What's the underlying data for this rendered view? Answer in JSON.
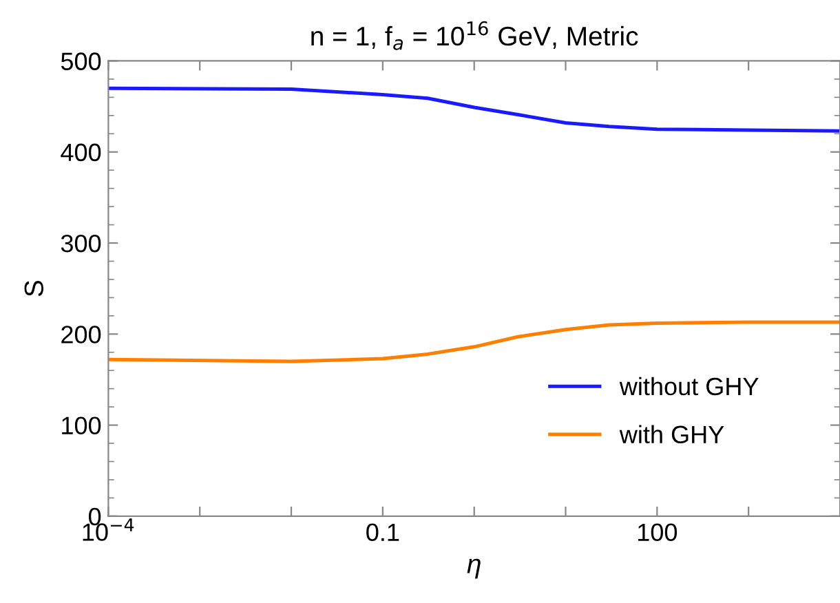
{
  "chart_data": {
    "type": "line",
    "title": "n = 1, f$_{a}$ = 10$^{16}$ GeV, Metric",
    "xlabel": "η",
    "ylabel": "S",
    "log": "x",
    "xlim": [
      0.0001,
      10000
    ],
    "ylim": [
      0,
      500
    ],
    "xticks": [
      {
        "value": 0.0001,
        "label": "10$^{−4}$"
      },
      {
        "value": 0.001,
        "label": null
      },
      {
        "value": 0.01,
        "label": null
      },
      0.1,
      {
        "value": 1,
        "label": null
      },
      {
        "value": 10,
        "label": null
      },
      100,
      {
        "value": 1000,
        "label": null
      }
    ],
    "yticks": [
      0,
      100,
      200,
      300,
      400,
      500
    ],
    "grid": false,
    "legend": "bottom right",
    "marker": "none",
    "line_style": "solid",
    "series": [
      {
        "name": "without GHY",
        "color": "#1a1aff",
        "x": [
          0.0001,
          0.01,
          0.1,
          0.31,
          1,
          3,
          10,
          30,
          100,
          1000,
          10000
        ],
        "values": [
          470,
          469,
          463,
          459,
          449,
          441,
          432,
          428,
          425,
          424,
          423
        ]
      },
      {
        "name": "with GHY",
        "color": "#ff8000",
        "x": [
          0.0001,
          0.01,
          0.1,
          0.31,
          1,
          3,
          10,
          30,
          100,
          1000,
          10000
        ],
        "values": [
          172,
          170,
          173,
          178,
          186,
          197,
          205,
          210,
          212,
          213,
          213
        ]
      }
    ]
  }
}
